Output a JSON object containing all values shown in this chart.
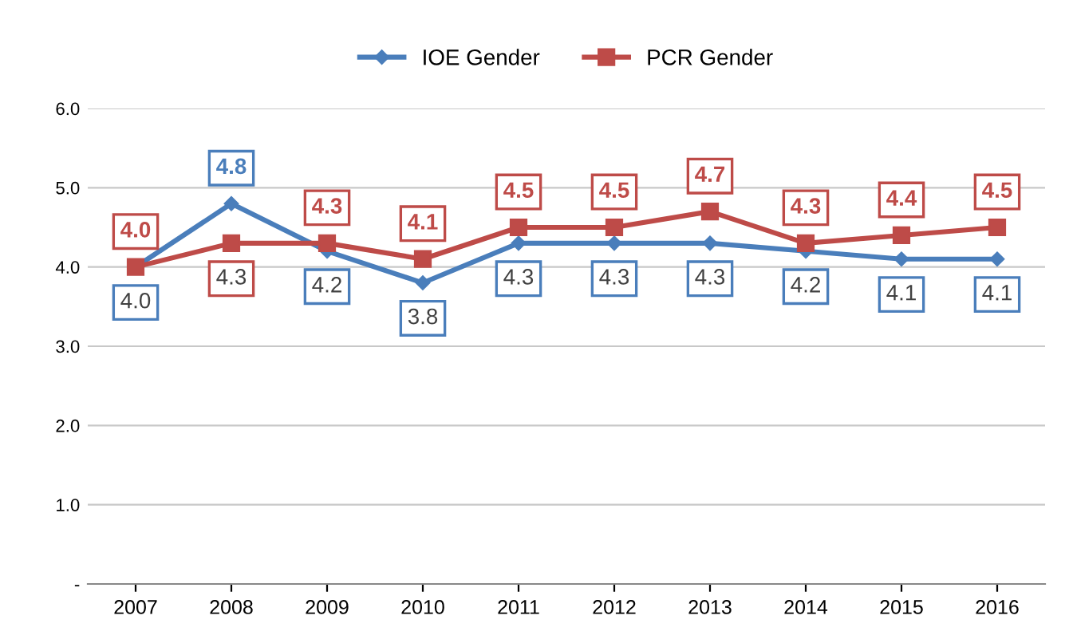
{
  "chart_data": {
    "type": "line",
    "categories": [
      "2007",
      "2008",
      "2009",
      "2010",
      "2011",
      "2012",
      "2013",
      "2014",
      "2015",
      "2016"
    ],
    "series": [
      {
        "name": "IOE Gender",
        "color": "#4a7ebb",
        "marker": "diamond",
        "values": [
          4.0,
          4.8,
          4.2,
          3.8,
          4.3,
          4.3,
          4.3,
          4.2,
          4.1,
          4.1
        ],
        "value_labels": [
          "4.0",
          "4.8",
          "4.2",
          "3.8",
          "4.3",
          "4.3",
          "4.3",
          "4.2",
          "4.1",
          "4.1"
        ]
      },
      {
        "name": "PCR Gender",
        "color": "#be4b48",
        "marker": "square",
        "values": [
          4.0,
          4.3,
          4.3,
          4.1,
          4.5,
          4.5,
          4.7,
          4.3,
          4.4,
          4.5
        ],
        "value_labels": [
          "4.0",
          "4.3",
          "4.3",
          "4.1",
          "4.5",
          "4.5",
          "4.7",
          "4.3",
          "4.4",
          "4.5"
        ]
      }
    ],
    "ylim": [
      0,
      6
    ],
    "yticks": [
      {
        "value": 0,
        "label": "-"
      },
      {
        "value": 1,
        "label": "1.0"
      },
      {
        "value": 2,
        "label": "2.0"
      },
      {
        "value": 3,
        "label": "3.0"
      },
      {
        "value": 4,
        "label": "4.0"
      },
      {
        "value": 5,
        "label": "5.0"
      },
      {
        "value": 6,
        "label": "6.0"
      }
    ],
    "grid": "y",
    "legend": "top",
    "line_style": "solid"
  }
}
